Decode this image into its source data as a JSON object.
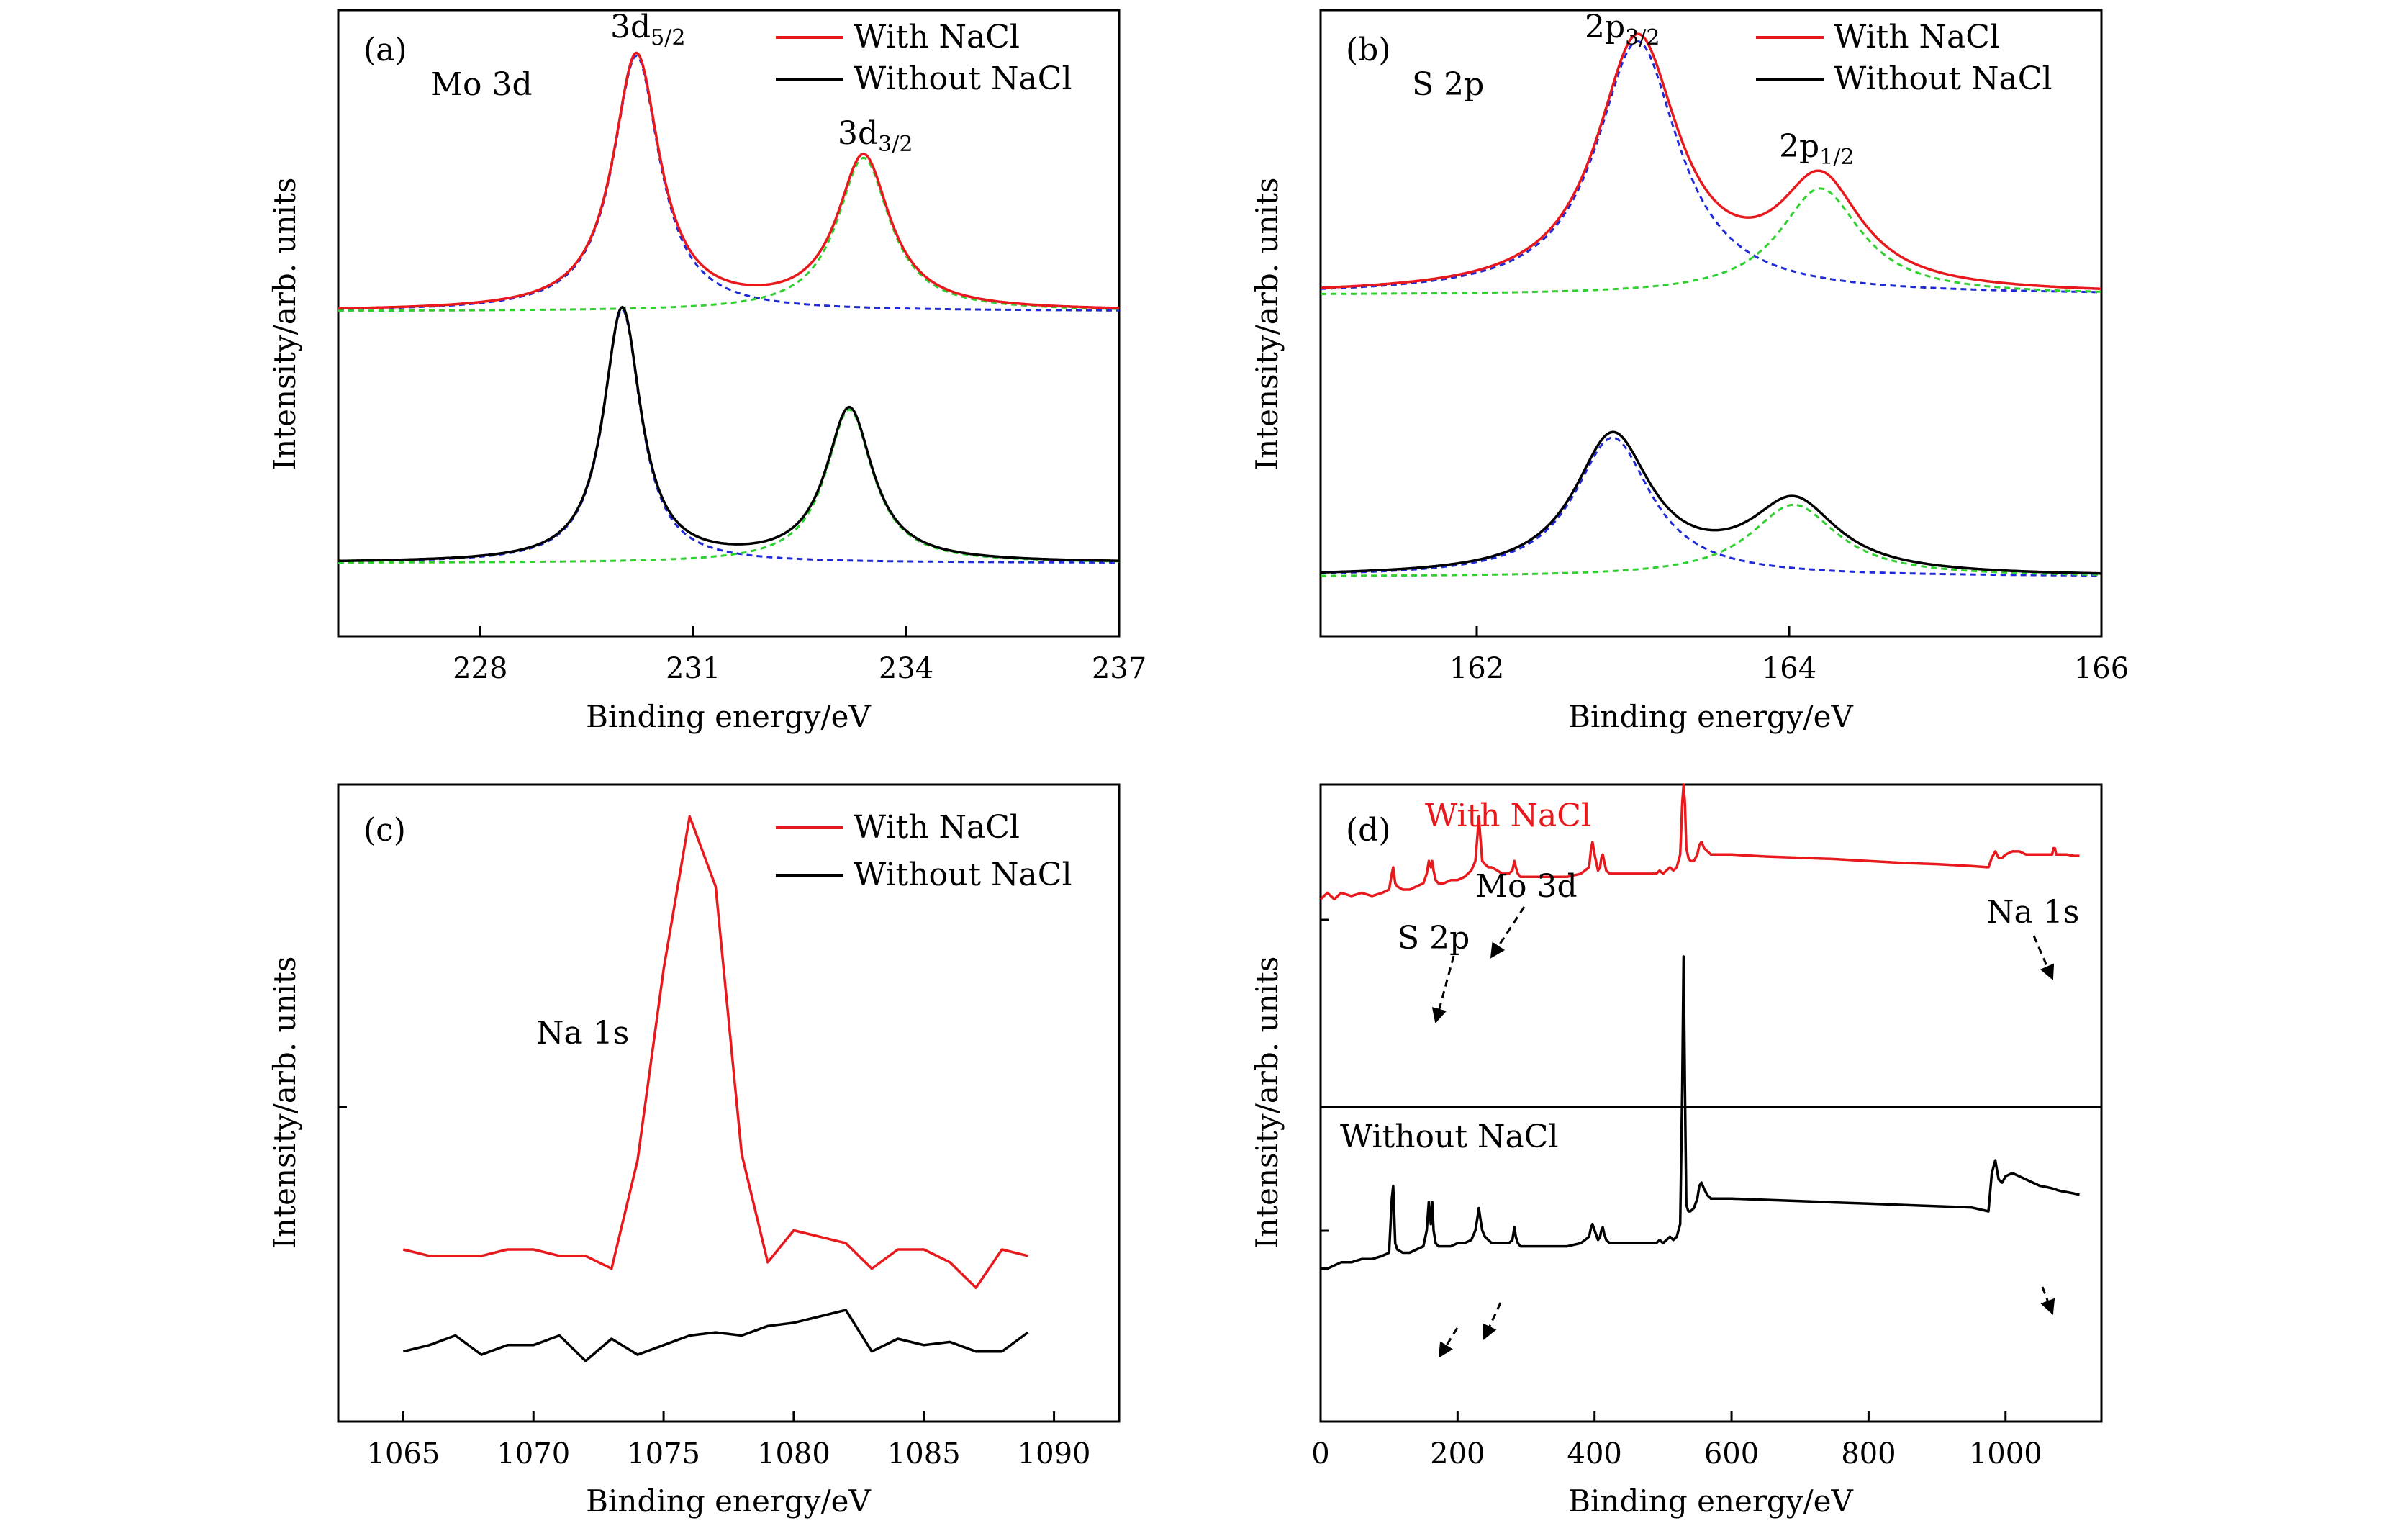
{
  "colors": {
    "with": "#e8191d",
    "without": "#000000",
    "fit_a": "#1f2ad6",
    "fit_b": "#2fd02f"
  },
  "chart_data": [
    {
      "id": "a",
      "type": "line",
      "panel_label": "(a)",
      "title": "Mo 3d",
      "xlabel": "Binding energy/eV",
      "ylabel": "Intensity/arb. units",
      "xlim": [
        226,
        237
      ],
      "ylim": [
        0,
        1
      ],
      "xticks": [
        "228",
        "231",
        "234",
        "237"
      ],
      "legend": [
        "With NaCl",
        "Without NaCl"
      ],
      "peak_labels": [
        {
          "base": "3d",
          "sub": "5/2",
          "x": 230.2
        },
        {
          "base": "3d",
          "sub": "3/2",
          "x": 233.4
        }
      ],
      "series": [
        {
          "name": "With NaCl",
          "color": "#e8191d",
          "baseline": 0.519,
          "peaks": [
            [
              230.2,
              0.408,
              0.4
            ],
            [
              233.4,
              0.245,
              0.45
            ]
          ]
        },
        {
          "name": "Without NaCl",
          "color": "#000000",
          "baseline": 0.117,
          "peaks": [
            [
              230.0,
              0.405,
              0.32
            ],
            [
              233.2,
              0.245,
              0.4
            ]
          ]
        }
      ]
    },
    {
      "id": "b",
      "type": "line",
      "panel_label": "(b)",
      "title": "S 2p",
      "xlabel": "Binding energy/eV",
      "ylabel": "Intensity/arb. units",
      "xlim": [
        161,
        166
      ],
      "ylim": [
        0,
        1
      ],
      "xticks": [
        "162",
        "164",
        "166"
      ],
      "legend": [
        "With NaCl",
        "Without NaCl"
      ],
      "peak_labels": [
        {
          "base": "2p",
          "sub": "3/2",
          "x": 163.03
        },
        {
          "base": "2p",
          "sub": "1/2",
          "x": 164.2
        }
      ],
      "series": [
        {
          "name": "With NaCl",
          "color": "#e8191d",
          "baseline": 0.545,
          "peaks": [
            [
              163.03,
              0.405,
              0.32
            ],
            [
              164.2,
              0.17,
              0.32
            ]
          ]
        },
        {
          "name": "Without NaCl",
          "color": "#000000",
          "baseline": 0.095,
          "peaks": [
            [
              162.87,
              0.222,
              0.3
            ],
            [
              164.03,
              0.115,
              0.34
            ]
          ]
        }
      ]
    },
    {
      "id": "c",
      "type": "line",
      "panel_label": "(c)",
      "title": "Na 1s",
      "xlabel": "Binding energy/eV",
      "ylabel": "Intensity/arb. units",
      "xlim": [
        1062.5,
        1092.5
      ],
      "ylim": [
        0,
        1
      ],
      "xticks": [
        "1065",
        "1070",
        "1075",
        "1080",
        "1085",
        "1090"
      ],
      "legend": [
        "With NaCl",
        "Without NaCl"
      ],
      "x": [
        1065,
        1066,
        1067,
        1068,
        1069,
        1070,
        1071,
        1072,
        1073,
        1074,
        1075,
        1076,
        1077,
        1078,
        1079,
        1080,
        1081,
        1082,
        1083,
        1084,
        1085,
        1086,
        1087,
        1088,
        1089
      ],
      "series": [
        {
          "name": "With NaCl",
          "color": "#e8191d",
          "values": [
            0.27,
            0.26,
            0.26,
            0.26,
            0.27,
            0.27,
            0.26,
            0.26,
            0.24,
            0.41,
            0.71,
            0.95,
            0.84,
            0.42,
            0.25,
            0.3,
            0.29,
            0.28,
            0.24,
            0.27,
            0.27,
            0.25,
            0.21,
            0.27,
            0.26
          ]
        },
        {
          "name": "Without NaCl",
          "color": "#000000",
          "values": [
            0.11,
            0.12,
            0.135,
            0.105,
            0.12,
            0.12,
            0.135,
            0.095,
            0.13,
            0.105,
            0.12,
            0.135,
            0.14,
            0.135,
            0.15,
            0.155,
            0.165,
            0.175,
            0.11,
            0.13,
            0.12,
            0.125,
            0.11,
            0.11,
            0.14
          ]
        }
      ]
    },
    {
      "id": "d",
      "type": "line",
      "panel_label": "(d)",
      "xlabel": "Binding energy/eV",
      "ylabel": "Intensity/arb. units",
      "xlim": [
        0,
        1140
      ],
      "ylim": [
        0,
        1
      ],
      "xticks": [
        "0",
        "200",
        "400",
        "600",
        "800",
        "1000"
      ],
      "region_labels": [
        "With NaCl",
        "Without NaCl"
      ],
      "peak_annotations": [
        {
          "text": "S 2p",
          "x": 163
        },
        {
          "text": "Mo 3d",
          "x": 230
        },
        {
          "text": "Na 1s",
          "x": 1072
        }
      ],
      "series": [
        {
          "name": "With NaCl",
          "color": "#e8191d",
          "x": [
            0,
            10,
            20,
            30,
            45,
            60,
            75,
            90,
            100,
            104,
            106,
            109,
            112,
            120,
            130,
            140,
            150,
            155,
            158,
            161,
            163,
            165,
            168,
            172,
            180,
            190,
            200,
            210,
            220,
            226,
            229,
            231,
            233,
            236,
            240,
            245,
            250,
            258,
            265,
            270,
            275,
            280,
            283,
            285,
            288,
            292,
            300,
            320,
            340,
            360,
            380,
            392,
            395,
            397,
            400,
            405,
            408,
            410,
            412,
            414,
            417,
            422,
            430,
            450,
            470,
            490,
            495,
            500,
            505,
            510,
            515,
            520,
            525,
            528,
            530,
            532,
            534,
            537,
            540,
            545,
            550,
            553,
            556,
            560,
            565,
            570,
            580,
            590,
            600,
            650,
            700,
            750,
            800,
            850,
            900,
            950,
            975,
            980,
            985,
            990,
            995,
            1000,
            1010,
            1020,
            1030,
            1040,
            1050,
            1060,
            1068,
            1070,
            1072,
            1074,
            1076,
            1080,
            1090,
            1100,
            1108
          ],
          "values": [
            0.82,
            0.83,
            0.82,
            0.83,
            0.825,
            0.83,
            0.825,
            0.83,
            0.835,
            0.86,
            0.87,
            0.845,
            0.84,
            0.835,
            0.835,
            0.84,
            0.845,
            0.86,
            0.88,
            0.87,
            0.88,
            0.865,
            0.85,
            0.845,
            0.845,
            0.85,
            0.85,
            0.855,
            0.865,
            0.88,
            0.92,
            0.95,
            0.92,
            0.88,
            0.875,
            0.87,
            0.87,
            0.865,
            0.86,
            0.86,
            0.86,
            0.865,
            0.88,
            0.87,
            0.86,
            0.855,
            0.855,
            0.855,
            0.855,
            0.855,
            0.86,
            0.87,
            0.9,
            0.91,
            0.89,
            0.865,
            0.87,
            0.885,
            0.89,
            0.88,
            0.865,
            0.86,
            0.86,
            0.86,
            0.86,
            0.86,
            0.865,
            0.86,
            0.865,
            0.87,
            0.865,
            0.87,
            0.89,
            0.97,
            1.0,
            0.97,
            0.9,
            0.885,
            0.88,
            0.88,
            0.89,
            0.905,
            0.91,
            0.9,
            0.895,
            0.89,
            0.89,
            0.89,
            0.89,
            0.887,
            0.885,
            0.883,
            0.88,
            0.877,
            0.875,
            0.872,
            0.87,
            0.885,
            0.895,
            0.885,
            0.885,
            0.89,
            0.895,
            0.895,
            0.89,
            0.89,
            0.89,
            0.89,
            0.89,
            0.9,
            0.9,
            0.89,
            0.89,
            0.89,
            0.89,
            0.888,
            0.888
          ]
        },
        {
          "name": "Without NaCl",
          "color": "#000000",
          "x": [
            0,
            10,
            20,
            30,
            45,
            60,
            75,
            90,
            100,
            104,
            106,
            109,
            112,
            120,
            130,
            140,
            150,
            155,
            158,
            161,
            163,
            165,
            168,
            172,
            180,
            190,
            200,
            210,
            220,
            226,
            229,
            231,
            233,
            236,
            240,
            245,
            250,
            258,
            265,
            270,
            275,
            280,
            283,
            285,
            288,
            292,
            300,
            320,
            340,
            360,
            380,
            392,
            395,
            397,
            400,
            405,
            408,
            410,
            412,
            414,
            417,
            422,
            430,
            450,
            470,
            490,
            495,
            500,
            505,
            510,
            515,
            520,
            525,
            528,
            530,
            532,
            534,
            537,
            540,
            545,
            550,
            553,
            556,
            560,
            565,
            570,
            580,
            590,
            600,
            650,
            700,
            750,
            800,
            850,
            900,
            950,
            975,
            980,
            985,
            990,
            995,
            1000,
            1010,
            1020,
            1030,
            1040,
            1050,
            1060,
            1068,
            1070,
            1072,
            1074,
            1076,
            1080,
            1090,
            1100,
            1108
          ],
          "values": [
            0.24,
            0.24,
            0.245,
            0.25,
            0.25,
            0.255,
            0.255,
            0.26,
            0.265,
            0.35,
            0.37,
            0.28,
            0.27,
            0.265,
            0.265,
            0.27,
            0.275,
            0.3,
            0.345,
            0.31,
            0.345,
            0.3,
            0.28,
            0.275,
            0.275,
            0.275,
            0.28,
            0.28,
            0.285,
            0.3,
            0.32,
            0.335,
            0.32,
            0.3,
            0.29,
            0.285,
            0.28,
            0.28,
            0.28,
            0.28,
            0.28,
            0.285,
            0.305,
            0.29,
            0.28,
            0.275,
            0.275,
            0.275,
            0.275,
            0.275,
            0.28,
            0.29,
            0.305,
            0.31,
            0.3,
            0.285,
            0.29,
            0.3,
            0.305,
            0.295,
            0.285,
            0.28,
            0.28,
            0.28,
            0.28,
            0.28,
            0.285,
            0.28,
            0.285,
            0.29,
            0.285,
            0.29,
            0.31,
            0.52,
            0.73,
            0.52,
            0.34,
            0.33,
            0.33,
            0.335,
            0.35,
            0.37,
            0.375,
            0.365,
            0.355,
            0.35,
            0.35,
            0.35,
            0.35,
            0.348,
            0.346,
            0.344,
            0.342,
            0.34,
            0.338,
            0.336,
            0.33,
            0.39,
            0.41,
            0.38,
            0.375,
            0.385,
            0.39,
            0.385,
            0.38,
            0.375,
            0.37,
            0.368,
            0.366,
            0.365,
            0.365,
            0.364,
            0.363,
            0.362,
            0.36,
            0.358,
            0.356
          ]
        }
      ]
    }
  ]
}
